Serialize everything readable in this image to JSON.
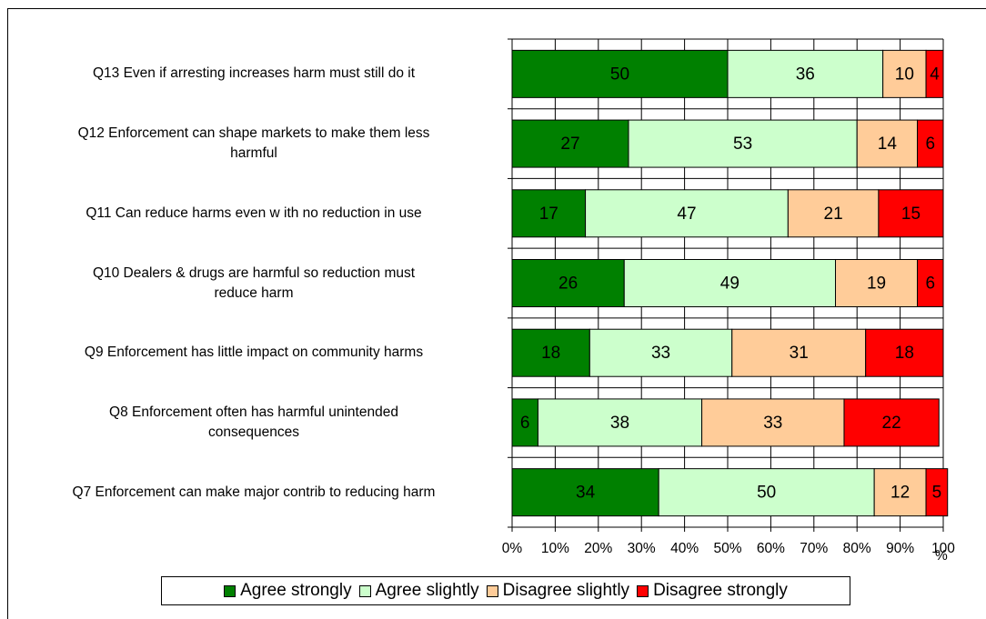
{
  "chart_data": {
    "type": "bar",
    "orientation": "horizontal",
    "stacked": true,
    "categories": [
      "Q13  Even if arresting increases harm must still do it",
      "Q12  Enforcement can shape markets to make them less harmful",
      "Q11  Can reduce harms even w ith no reduction in use",
      "Q10  Dealers & drugs are harmful so reduction must reduce harm",
      "Q9  Enforcement has little impact on community harms",
      "Q8  Enforcement often has harmful unintended consequences",
      "Q7  Enforcement can make major contrib to reducing harm"
    ],
    "category_lines": [
      [
        "Q13  Even if arresting increases harm must still do it"
      ],
      [
        "Q12  Enforcement can shape markets to make them less",
        "harmful"
      ],
      [
        "Q11  Can reduce harms even w ith no reduction in use"
      ],
      [
        "Q10  Dealers & drugs are harmful so reduction must",
        "reduce harm"
      ],
      [
        "Q9  Enforcement has little impact on community harms"
      ],
      [
        "Q8  Enforcement often has harmful unintended",
        "consequences"
      ],
      [
        "Q7  Enforcement can make major contrib to reducing harm"
      ]
    ],
    "series": [
      {
        "name": "Agree strongly",
        "color": "#008000",
        "values": [
          50,
          27,
          17,
          26,
          18,
          6,
          34
        ]
      },
      {
        "name": "Agree slightly",
        "color": "#CCFFCC",
        "values": [
          36,
          53,
          47,
          49,
          33,
          38,
          50
        ]
      },
      {
        "name": "Disagree slightly",
        "color": "#FFCC99",
        "values": [
          10,
          14,
          21,
          19,
          31,
          33,
          12
        ]
      },
      {
        "name": "Disagree strongly",
        "color": "#FF0000",
        "values": [
          4,
          6,
          15,
          6,
          18,
          22,
          5
        ]
      }
    ],
    "x_ticks": [
      "0%",
      "10%",
      "20%",
      "30%",
      "40%",
      "50%",
      "60%",
      "70%",
      "80%",
      "90%",
      "100"
    ],
    "x_unit": "%",
    "xlim": [
      0,
      100
    ],
    "grid": true,
    "legend_position": "bottom"
  }
}
